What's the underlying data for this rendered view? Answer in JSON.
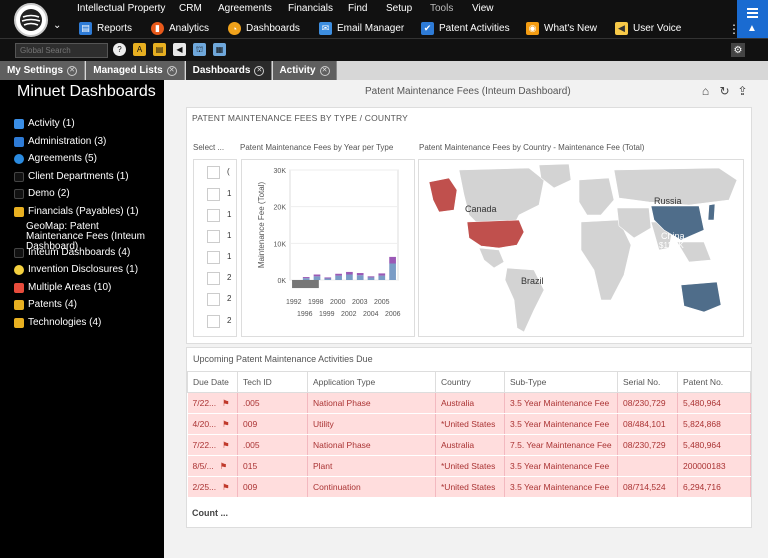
{
  "menu_top": [
    "Intellectual Property",
    "CRM",
    "Agreements",
    "Financials",
    "Find",
    "Setup",
    "Tools",
    "View"
  ],
  "menu_bottom": [
    {
      "label": "Reports",
      "icon": "reports-icon",
      "color": "#2e7bd6"
    },
    {
      "label": "Analytics",
      "icon": "analytics-icon",
      "color": "#e8591a"
    },
    {
      "label": "Dashboards",
      "icon": "dashboards-icon",
      "color": "#f0a21b"
    },
    {
      "label": "Email Manager",
      "icon": "email-icon",
      "color": "#3d8ee0"
    },
    {
      "label": "Patent Activities",
      "icon": "patent-activities-icon",
      "color": "#2e7bd6"
    },
    {
      "label": "What's New",
      "icon": "rss-icon",
      "color": "#f39c12"
    },
    {
      "label": "User Voice",
      "icon": "megaphone-icon",
      "color": "#f7c948"
    }
  ],
  "search": {
    "placeholder": "Global Search"
  },
  "tabs": [
    {
      "label": "My Settings",
      "closable": true,
      "active": false
    },
    {
      "label": "Managed Lists",
      "closable": true,
      "active": false
    },
    {
      "label": "Dashboards",
      "closable": true,
      "active": true
    },
    {
      "label": "Activity",
      "closable": true,
      "active": false
    }
  ],
  "sidebar": {
    "title": "Minuet Dashboards",
    "items": [
      {
        "label": "Activity (1)",
        "icon": "activity-icon",
        "color": "#3a8ee6"
      },
      {
        "label": "Administration (3)",
        "icon": "administration-icon",
        "color": "#2e7bd6"
      },
      {
        "label": "Agreements (5)",
        "icon": "agreements-icon",
        "color": "#2b8be0"
      },
      {
        "label": "Client Departments (1)",
        "icon": "client-departments-icon",
        "color": "#111"
      },
      {
        "label": "Demo (2)",
        "icon": "demo-icon",
        "color": "#111"
      },
      {
        "label": "Financials (Payables) (1)",
        "icon": "financials-icon",
        "color": "#e8b021"
      },
      {
        "label": "GeoMap: Patent Maintenance Fees (Inteum Dashboard)",
        "icon": "",
        "color": ""
      },
      {
        "label": "Inteum Dashboards (4)",
        "icon": "inteum-dashboards-icon",
        "color": "#111"
      },
      {
        "label": "Invention Disclosures (1)",
        "icon": "lightbulb-icon",
        "color": "#f4d03f"
      },
      {
        "label": "Multiple Areas (10)",
        "icon": "multiple-areas-icon",
        "color": "#e74c3c"
      },
      {
        "label": "Patents (4)",
        "icon": "patents-icon",
        "color": "#e8b021"
      },
      {
        "label": "Technologies (4)",
        "icon": "technologies-icon",
        "color": "#e8b021"
      }
    ]
  },
  "main": {
    "title": "Patent Maintenance Fees (Inteum Dashboard)",
    "card1_title": "PATENT MAINTENANCE FEES BY TYPE / COUNTRY",
    "select_title": "Select ...",
    "select_rows": [
      "(",
      "1",
      "1",
      "1",
      "1",
      "2",
      "2",
      "2"
    ],
    "bar_title": "Patent Maintenance Fees by Year per Type",
    "map_title": "Patent Maintenance Fees by Country - Maintenance Fee (Total)",
    "map_labels": {
      "canada": "Canada",
      "russia": "Russia",
      "china": "China",
      "china_value": "$11.4K",
      "brazil": "Brazil"
    },
    "card2_title": "Upcoming Patent Maintenance Activities Due",
    "table": {
      "headers": [
        "Due Date",
        "Tech ID",
        "Application Type",
        "Country",
        "Sub-Type",
        "Serial No.",
        "Patent No."
      ],
      "rows": [
        [
          "7/22...",
          ".005",
          "National Phase",
          "Australia",
          "3.5 Year Maintenance Fee",
          "08/230,729",
          "5,480,964"
        ],
        [
          "4/20...",
          "009",
          "Utility",
          "*United States",
          "3.5 Year Maintenance Fee",
          "08/484,101",
          "5,824,868"
        ],
        [
          "7/22...",
          ".005",
          "National Phase",
          "Australia",
          "7.5. Year Maintenance Fee",
          "08/230,729",
          "5,480,964"
        ],
        [
          "8/5/...",
          "015",
          "Plant",
          "*United States",
          "3.5 Year Maintenance Fee",
          "",
          "200000183"
        ],
        [
          "2/25...",
          "009",
          "Continuation",
          "*United States",
          "3.5 Year Maintenance Fee",
          "08/714,524",
          "6,294,716"
        ]
      ]
    },
    "count_label": "Count ..."
  },
  "chart_data": {
    "type": "bar",
    "title": "Patent Maintenance Fees by Year per Type",
    "ylabel": "Maintenance Fee (Total)",
    "xlabel": "",
    "ylim": [
      0,
      30000
    ],
    "yticks": [
      "0K",
      "10K",
      "20K",
      "30K"
    ],
    "categories": [
      "1992",
      "1996",
      "1998",
      "1999",
      "2000",
      "2002",
      "2003",
      "2004",
      "2005",
      "2006"
    ],
    "x_tick_labels_top": [
      "1992",
      "1998",
      "2000",
      "2003",
      "2005"
    ],
    "x_tick_labels_bottom": [
      "1996",
      "1999",
      "2002",
      "2004",
      "2006"
    ],
    "series": [
      {
        "values": [
          0,
          500,
          1000,
          500,
          1200,
          1500,
          1300,
          700,
          1200,
          4500
        ],
        "color": "#7a9cc6"
      },
      {
        "values": [
          0,
          300,
          500,
          200,
          500,
          700,
          600,
          300,
          600,
          1800
        ],
        "color": "#9b59b6"
      },
      {
        "values": [
          -2200,
          0,
          0,
          0,
          0,
          0,
          0,
          0,
          0,
          0
        ],
        "color": "#777"
      }
    ]
  }
}
